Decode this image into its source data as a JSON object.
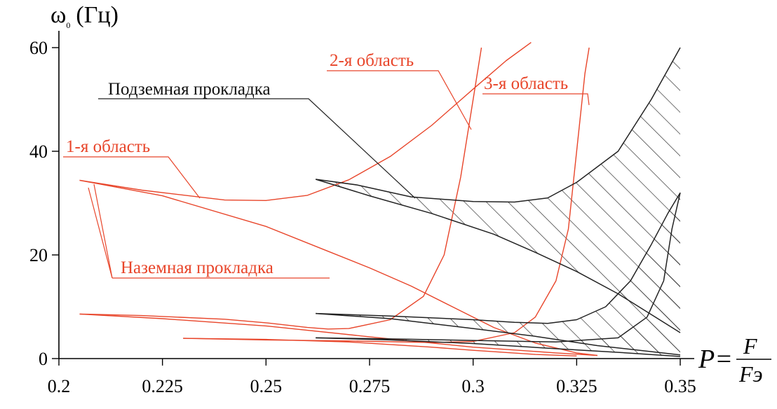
{
  "chart_data": {
    "type": "line",
    "y_axis": {
      "symbol": "ω",
      "subscript": "0",
      "unit": "(Гц)",
      "ticks": [
        "0",
        "20",
        "40",
        "60"
      ],
      "range": [
        0,
        62
      ]
    },
    "x_axis": {
      "symbol": "P=",
      "numerator": "F",
      "denominator": "Fэ",
      "ticks": [
        "0.2",
        "0.225",
        "0.25",
        "0.275",
        "0.3",
        "0.325",
        "0.35"
      ],
      "range": [
        0.2,
        0.35
      ]
    },
    "colors": {
      "red": "#e8452a",
      "black": "#222222",
      "hatch": "#333333",
      "axis": "#000000"
    },
    "annotations": [
      {
        "text": "1-я область",
        "color": "red"
      },
      {
        "text": "2-я область",
        "color": "red"
      },
      {
        "text": "3-я область",
        "color": "red"
      },
      {
        "text": "Подземная прокладка",
        "color": "black"
      },
      {
        "text": "Наземная прокладка",
        "color": "red"
      }
    ],
    "series": [
      {
        "color": "red",
        "points": [
          [
            0.205,
            34.4
          ],
          [
            0.22,
            32.5
          ],
          [
            0.24,
            30.6
          ],
          [
            0.25,
            30.5
          ],
          [
            0.26,
            31.5
          ],
          [
            0.27,
            34.5
          ],
          [
            0.28,
            39
          ],
          [
            0.29,
            45
          ],
          [
            0.3,
            52
          ],
          [
            0.308,
            57.5
          ],
          [
            0.314,
            61
          ]
        ]
      },
      {
        "color": "red",
        "points": [
          [
            0.205,
            34.4
          ],
          [
            0.225,
            31.4
          ],
          [
            0.25,
            25.5
          ],
          [
            0.265,
            20.7
          ],
          [
            0.275,
            17.5
          ],
          [
            0.285,
            14
          ],
          [
            0.295,
            10
          ],
          [
            0.305,
            6
          ],
          [
            0.315,
            3
          ],
          [
            0.325,
            1.1
          ],
          [
            0.33,
            0.6
          ]
        ]
      },
      {
        "color": "red",
        "points": [
          [
            0.205,
            8.6
          ],
          [
            0.22,
            8.3
          ],
          [
            0.24,
            7.6
          ],
          [
            0.25,
            6.9
          ],
          [
            0.26,
            6
          ],
          [
            0.265,
            5.7
          ],
          [
            0.27,
            5.8
          ],
          [
            0.28,
            7.5
          ],
          [
            0.288,
            12
          ],
          [
            0.293,
            20
          ],
          [
            0.297,
            35
          ],
          [
            0.3,
            50
          ],
          [
            0.302,
            60
          ]
        ]
      },
      {
        "color": "red",
        "points": [
          [
            0.205,
            8.6
          ],
          [
            0.225,
            7.7
          ],
          [
            0.25,
            6.3
          ],
          [
            0.275,
            4.2
          ],
          [
            0.3,
            2.2
          ],
          [
            0.32,
            1.1
          ],
          [
            0.33,
            0.6
          ]
        ]
      },
      {
        "color": "red",
        "points": [
          [
            0.23,
            3.9
          ],
          [
            0.25,
            3.6
          ],
          [
            0.27,
            3.4
          ],
          [
            0.29,
            3.1
          ],
          [
            0.3,
            3.3
          ],
          [
            0.31,
            5
          ],
          [
            0.315,
            8
          ],
          [
            0.32,
            15
          ],
          [
            0.323,
            25
          ],
          [
            0.325,
            40
          ],
          [
            0.327,
            55
          ],
          [
            0.328,
            60
          ]
        ]
      },
      {
        "color": "red",
        "points": [
          [
            0.23,
            3.9
          ],
          [
            0.25,
            3.7
          ],
          [
            0.27,
            3.2
          ],
          [
            0.29,
            2.2
          ],
          [
            0.3,
            1.6
          ],
          [
            0.315,
            0.8
          ],
          [
            0.325,
            0.5
          ]
        ]
      },
      {
        "color": "black",
        "points": [
          [
            0.262,
            34.6
          ],
          [
            0.272,
            33.5
          ],
          [
            0.285,
            31.2
          ],
          [
            0.3,
            30.3
          ],
          [
            0.31,
            30.2
          ],
          [
            0.318,
            31
          ],
          [
            0.325,
            34
          ],
          [
            0.335,
            40
          ],
          [
            0.343,
            50
          ],
          [
            0.35,
            60
          ]
        ]
      },
      {
        "color": "black",
        "points": [
          [
            0.262,
            34.6
          ],
          [
            0.275,
            31.4
          ],
          [
            0.29,
            28
          ],
          [
            0.305,
            24
          ],
          [
            0.315,
            20.5
          ],
          [
            0.325,
            16.8
          ],
          [
            0.335,
            12.5
          ],
          [
            0.345,
            7.5
          ],
          [
            0.35,
            5
          ]
        ]
      },
      {
        "color": "black",
        "points": [
          [
            0.262,
            8.7
          ],
          [
            0.28,
            8.2
          ],
          [
            0.3,
            7.5
          ],
          [
            0.31,
            7
          ],
          [
            0.318,
            6.8
          ],
          [
            0.325,
            7.5
          ],
          [
            0.332,
            10
          ],
          [
            0.338,
            15
          ],
          [
            0.343,
            22
          ],
          [
            0.347,
            28
          ],
          [
            0.35,
            32
          ]
        ]
      },
      {
        "color": "black",
        "points": [
          [
            0.262,
            8.7
          ],
          [
            0.28,
            7.7
          ],
          [
            0.3,
            5.8
          ],
          [
            0.315,
            4.3
          ],
          [
            0.33,
            2.5
          ],
          [
            0.35,
            0.7
          ]
        ]
      },
      {
        "color": "black",
        "points": [
          [
            0.262,
            4
          ],
          [
            0.28,
            3.8
          ],
          [
            0.3,
            3.5
          ],
          [
            0.32,
            3.2
          ],
          [
            0.335,
            4
          ],
          [
            0.342,
            8
          ],
          [
            0.346,
            15
          ],
          [
            0.348,
            25
          ],
          [
            0.35,
            32
          ]
        ]
      },
      {
        "color": "black",
        "points": [
          [
            0.262,
            4
          ],
          [
            0.28,
            3.6
          ],
          [
            0.3,
            2.9
          ],
          [
            0.32,
            1.9
          ],
          [
            0.335,
            1.2
          ],
          [
            0.35,
            0.4
          ]
        ]
      }
    ]
  }
}
